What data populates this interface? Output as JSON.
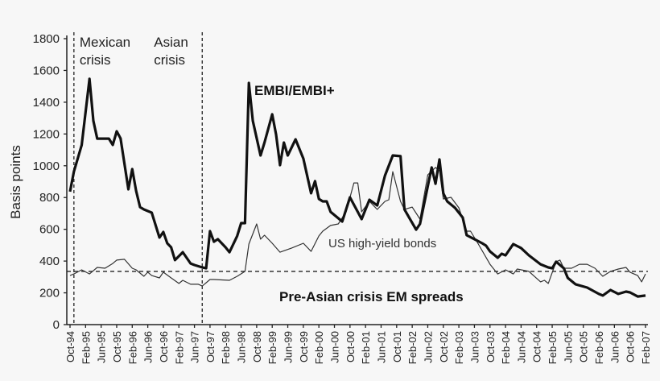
{
  "chart_data": {
    "type": "line",
    "title": "",
    "xlabel": "",
    "ylabel": "Basis points",
    "ylim": [
      0,
      1800
    ],
    "yticks": [
      0,
      200,
      400,
      600,
      800,
      1000,
      1200,
      1400,
      1600,
      1800
    ],
    "xlim": [
      "1994-10",
      "2007-02"
    ],
    "xtick_labels": [
      "Oct-94",
      "Feb-95",
      "Jun-95",
      "Oct-95",
      "Feb-96",
      "Jun-96",
      "Oct-96",
      "Feb-97",
      "Jun-97",
      "Oct-97",
      "Feb-98",
      "Jun-98",
      "Oct-98",
      "Feb-99",
      "Jun-99",
      "Oct-99",
      "Feb-00",
      "Jun-00",
      "Oct-00",
      "Feb-01",
      "Jun-01",
      "Oct-01",
      "Feb-02",
      "Jun-02",
      "Oct-02",
      "Feb-03",
      "Jun-03",
      "Oct-03",
      "Feb-04",
      "Jun-04",
      "Oct-04",
      "Feb-05",
      "Jun-05",
      "Oct-05",
      "Feb-06",
      "Jun-06",
      "Oct-06",
      "Feb-07"
    ],
    "grid": false,
    "series": [
      {
        "name": "EMBI/EMBI+",
        "color": "#111111",
        "style": "thick",
        "points": [
          [
            "1994-10",
            837
          ],
          [
            "1994-11",
            963
          ],
          [
            "1995-01",
            1130
          ],
          [
            "1995-03",
            1547
          ],
          [
            "1995-04",
            1283
          ],
          [
            "1995-05",
            1171
          ],
          [
            "1995-08",
            1171
          ],
          [
            "1995-09",
            1131
          ],
          [
            "1995-10",
            1217
          ],
          [
            "1995-11",
            1172
          ],
          [
            "1996-01",
            852
          ],
          [
            "1996-02",
            979
          ],
          [
            "1996-03",
            842
          ],
          [
            "1996-04",
            740
          ],
          [
            "1996-05",
            725
          ],
          [
            "1996-07",
            705
          ],
          [
            "1996-09",
            548
          ],
          [
            "1996-10",
            583
          ],
          [
            "1996-11",
            512
          ],
          [
            "1996-12",
            487
          ],
          [
            "1997-01",
            406
          ],
          [
            "1997-03",
            456
          ],
          [
            "1997-05",
            385
          ],
          [
            "1997-06",
            375
          ],
          [
            "1997-08",
            360
          ],
          [
            "1997-09",
            355
          ],
          [
            "1997-10",
            588
          ],
          [
            "1997-11",
            522
          ],
          [
            "1997-12",
            538
          ],
          [
            "1998-02",
            487
          ],
          [
            "1998-03",
            456
          ],
          [
            "1998-05",
            558
          ],
          [
            "1998-06",
            639
          ],
          [
            "1998-07",
            639
          ],
          [
            "1998-08",
            1521
          ],
          [
            "1998-09",
            1283
          ],
          [
            "1998-11",
            1065
          ],
          [
            "1998-12",
            1146
          ],
          [
            "1999-02",
            1324
          ],
          [
            "1999-03",
            1197
          ],
          [
            "1999-04",
            1004
          ],
          [
            "1999-05",
            1146
          ],
          [
            "1999-06",
            1065
          ],
          [
            "1999-08",
            1166
          ],
          [
            "1999-10",
            1045
          ],
          [
            "1999-12",
            827
          ],
          [
            "2000-01",
            903
          ],
          [
            "2000-02",
            791
          ],
          [
            "2000-03",
            776
          ],
          [
            "2000-04",
            776
          ],
          [
            "2000-05",
            710
          ],
          [
            "2000-08",
            649
          ],
          [
            "2000-10",
            801
          ],
          [
            "2001-01",
            664
          ],
          [
            "2001-03",
            786
          ],
          [
            "2001-05",
            750
          ],
          [
            "2001-07",
            938
          ],
          [
            "2001-09",
            1065
          ],
          [
            "2001-11",
            1060
          ],
          [
            "2001-12",
            725
          ],
          [
            "2002-03",
            598
          ],
          [
            "2002-04",
            634
          ],
          [
            "2002-07",
            989
          ],
          [
            "2002-08",
            887
          ],
          [
            "2002-09",
            1040
          ],
          [
            "2002-10",
            827
          ],
          [
            "2002-11",
            776
          ],
          [
            "2003-01",
            735
          ],
          [
            "2003-03",
            674
          ],
          [
            "2003-04",
            563
          ],
          [
            "2003-06",
            538
          ],
          [
            "2003-08",
            512
          ],
          [
            "2003-09",
            497
          ],
          [
            "2003-10",
            461
          ],
          [
            "2003-12",
            421
          ],
          [
            "2004-01",
            446
          ],
          [
            "2004-02",
            436
          ],
          [
            "2004-04",
            507
          ],
          [
            "2004-06",
            482
          ],
          [
            "2004-08",
            436
          ],
          [
            "2004-11",
            380
          ],
          [
            "2005-01",
            360
          ],
          [
            "2005-02",
            355
          ],
          [
            "2005-03",
            396
          ],
          [
            "2005-05",
            355
          ],
          [
            "2005-06",
            294
          ],
          [
            "2005-08",
            254
          ],
          [
            "2005-11",
            233
          ],
          [
            "2006-02",
            193
          ],
          [
            "2006-03",
            183
          ],
          [
            "2006-05",
            218
          ],
          [
            "2006-07",
            193
          ],
          [
            "2006-09",
            208
          ],
          [
            "2006-10",
            203
          ],
          [
            "2006-12",
            177
          ],
          [
            "2007-02",
            183
          ]
        ]
      },
      {
        "name": "US high-yield bonds",
        "color": "#333333",
        "style": "thin",
        "points": [
          [
            "1994-10",
            309
          ],
          [
            "1994-11",
            319
          ],
          [
            "1995-01",
            345
          ],
          [
            "1995-03",
            319
          ],
          [
            "1995-05",
            360
          ],
          [
            "1995-07",
            355
          ],
          [
            "1995-09",
            385
          ],
          [
            "1995-10",
            406
          ],
          [
            "1995-12",
            411
          ],
          [
            "1996-02",
            355
          ],
          [
            "1996-03",
            345
          ],
          [
            "1996-05",
            304
          ],
          [
            "1996-06",
            330
          ],
          [
            "1996-07",
            309
          ],
          [
            "1996-09",
            294
          ],
          [
            "1996-10",
            330
          ],
          [
            "1996-12",
            294
          ],
          [
            "1997-02",
            259
          ],
          [
            "1997-03",
            279
          ],
          [
            "1997-05",
            254
          ],
          [
            "1997-07",
            254
          ],
          [
            "1997-08",
            243
          ],
          [
            "1997-10",
            284
          ],
          [
            "1997-11",
            284
          ],
          [
            "1998-03",
            279
          ],
          [
            "1998-05",
            304
          ],
          [
            "1998-07",
            335
          ],
          [
            "1998-08",
            507
          ],
          [
            "1998-10",
            634
          ],
          [
            "1998-11",
            538
          ],
          [
            "1998-12",
            563
          ],
          [
            "1999-02",
            512
          ],
          [
            "1999-04",
            456
          ],
          [
            "1999-07",
            482
          ],
          [
            "1999-10",
            512
          ],
          [
            "1999-12",
            461
          ],
          [
            "2000-02",
            558
          ],
          [
            "2000-03",
            588
          ],
          [
            "2000-05",
            624
          ],
          [
            "2000-07",
            634
          ],
          [
            "2000-09",
            710
          ],
          [
            "2000-11",
            892
          ],
          [
            "2000-12",
            892
          ],
          [
            "2001-01",
            710
          ],
          [
            "2001-03",
            776
          ],
          [
            "2001-05",
            725
          ],
          [
            "2001-07",
            776
          ],
          [
            "2001-08",
            786
          ],
          [
            "2001-09",
            963
          ],
          [
            "2001-11",
            776
          ],
          [
            "2001-12",
            725
          ],
          [
            "2002-02",
            740
          ],
          [
            "2002-04",
            664
          ],
          [
            "2002-06",
            943
          ],
          [
            "2002-08",
            989
          ],
          [
            "2002-09",
            969
          ],
          [
            "2002-10",
            791
          ],
          [
            "2002-12",
            801
          ],
          [
            "2003-02",
            735
          ],
          [
            "2003-04",
            588
          ],
          [
            "2003-05",
            588
          ],
          [
            "2003-07",
            507
          ],
          [
            "2003-10",
            380
          ],
          [
            "2003-12",
            319
          ],
          [
            "2004-02",
            345
          ],
          [
            "2004-04",
            319
          ],
          [
            "2004-05",
            350
          ],
          [
            "2004-08",
            335
          ],
          [
            "2004-11",
            269
          ],
          [
            "2004-12",
            279
          ],
          [
            "2005-01",
            259
          ],
          [
            "2005-03",
            396
          ],
          [
            "2005-04",
            406
          ],
          [
            "2005-05",
            355
          ],
          [
            "2005-07",
            355
          ],
          [
            "2005-09",
            380
          ],
          [
            "2005-11",
            380
          ],
          [
            "2006-01",
            355
          ],
          [
            "2006-03",
            304
          ],
          [
            "2006-05",
            335
          ],
          [
            "2006-07",
            350
          ],
          [
            "2006-09",
            360
          ],
          [
            "2006-10",
            330
          ],
          [
            "2006-12",
            309
          ],
          [
            "2007-01",
            269
          ],
          [
            "2007-02",
            319
          ]
        ]
      }
    ],
    "reference_line": {
      "label": "Pre-Asian crisis EM spreads",
      "value": 335,
      "style": "dashed"
    },
    "event_lines": [
      {
        "label_lines": [
          "Mexican",
          "crisis"
        ],
        "date": "1994-11"
      },
      {
        "label_lines": [
          "Asian",
          "crisis"
        ],
        "date": "1997-08"
      }
    ],
    "annotations": {
      "embi": "EMBI/EMBI+",
      "us_hy": "US high-yield bonds"
    },
    "legend": "none (inline labels)"
  }
}
